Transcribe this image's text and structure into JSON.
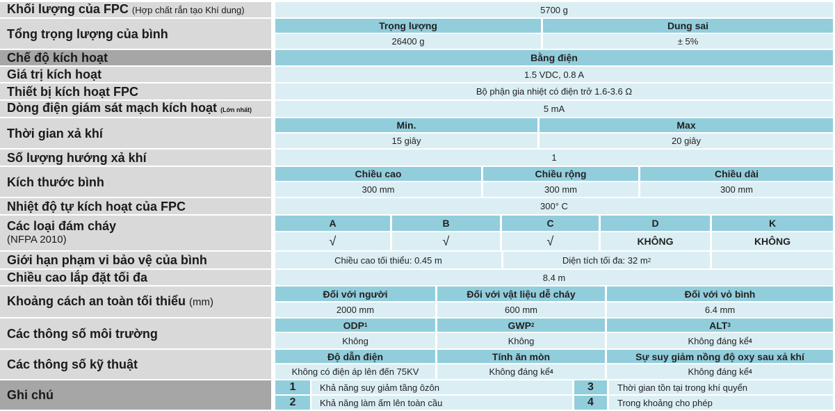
{
  "rows": {
    "fpc_mass": {
      "label": "Khối lượng của FPC",
      "note": "(Hợp chất rắn tạo Khí dung)",
      "value": "5700 g"
    },
    "total_weight": {
      "label": "Tổng trọng lượng của bình",
      "h1": "Trọng lượng",
      "h2": "Dung sai",
      "v1": "26400 g",
      "v2": "± 5%"
    },
    "activation_mode": {
      "label": "Chế độ kích hoạt",
      "value": "Bằng điện"
    },
    "activation_value": {
      "label": "Giá trị kích hoạt",
      "value": "1.5 VDC, 0.8 A"
    },
    "activation_device": {
      "label": "Thiết bị kích hoạt FPC",
      "value": "Bộ phận gia nhiệt có điện trở 1.6-3.6 Ω"
    },
    "monitor_current": {
      "label": "Dòng điện giám sát mạch kích hoạt",
      "note": "(Lớn nhất)",
      "value": "5 mA"
    },
    "discharge_time": {
      "label": "Thời gian xả khí",
      "h1": "Min.",
      "h2": "Max",
      "v1": "15 giây",
      "v2": "20 giây"
    },
    "discharge_dirs": {
      "label": "Số lượng hướng xả khí",
      "value": "1"
    },
    "size": {
      "label": "Kích thước bình",
      "h": [
        "Chiều cao",
        "Chiều rộng",
        "Chiều dài"
      ],
      "v": [
        "300 mm",
        "300 mm",
        "300 mm"
      ]
    },
    "self_temp": {
      "label": "Nhiệt độ tự kích hoạt của FPC",
      "value": "300° C"
    },
    "fire_classes": {
      "label": "Các loại đám cháy",
      "note": "(NFPA 2010)",
      "h": [
        "A",
        "B",
        "C",
        "D",
        "K"
      ],
      "v": [
        "√",
        "√",
        "√",
        "KHÔNG",
        "KHÔNG"
      ]
    },
    "coverage": {
      "label": "Giới hạn phạm vi bảo vệ của  bình",
      "v1": "Chiều cao tối thiểu:  0.45 m",
      "v2": "Diện tích tối đa:  32 m",
      "v2_sup": "2"
    },
    "max_height": {
      "label": "Chiều cao lắp đặt tối đa",
      "value": "8.4 m"
    },
    "safe_distance": {
      "label": "Khoảng cách an toàn tối thiểu",
      "note": "(mm)",
      "h": [
        "Đối với người",
        "Đối với vật liệu dễ cháy",
        "Đối với vỏ bình"
      ],
      "v": [
        "2000 mm",
        "600 mm",
        "6.4 mm"
      ]
    },
    "environment": {
      "label": "Các thông số môi trường",
      "h": [
        "ODP",
        "GWP",
        "ALT"
      ],
      "h_sup": [
        "1",
        "2",
        "3"
      ],
      "v": [
        "Không",
        "Không",
        "Không đáng kể"
      ],
      "v_sup": [
        "",
        "",
        "4"
      ]
    },
    "technical": {
      "label": "Các thông số kỹ thuật",
      "h": [
        "Độ dẫn điện",
        "Tính ăn mòn",
        "Sự suy giảm nồng độ oxy sau xả khí"
      ],
      "v": [
        "Không có điện áp lên đến 75KV",
        "Không đáng kể",
        "Không đáng kể"
      ],
      "v_sup": [
        "",
        "4",
        "4"
      ]
    },
    "notes": {
      "label": "Ghi chú",
      "items": [
        {
          "n": "1",
          "t": "Khả năng suy giảm tầng ôzôn"
        },
        {
          "n": "2",
          "t": "Khả năng làm ấm lên toàn cầu"
        },
        {
          "n": "3",
          "t": "Thời gian tồn tại trong khí quyển"
        },
        {
          "n": "4",
          "t": "Trong khoảng cho phép"
        }
      ]
    }
  },
  "colors": {
    "label_bg": "#d9d9d9",
    "label_dark": "#a6a6a6",
    "cell": "#dbeef3",
    "header": "#92cddc"
  }
}
